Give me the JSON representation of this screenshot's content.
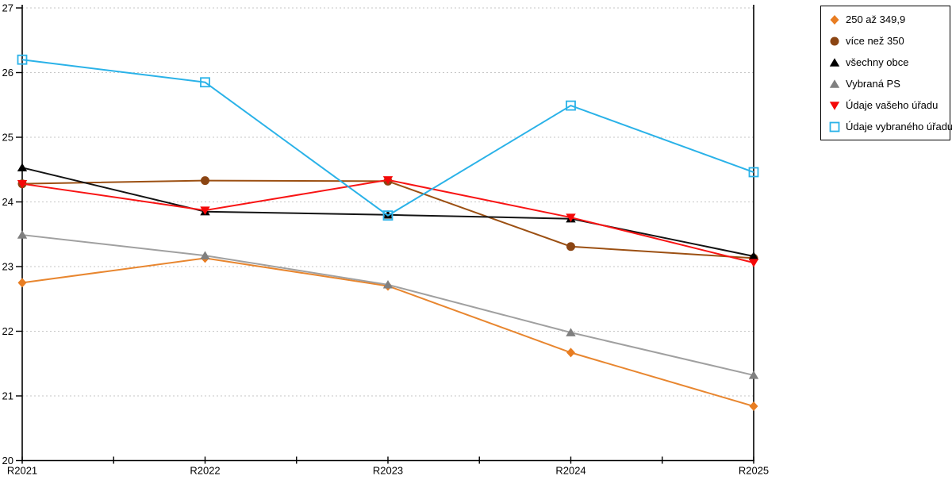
{
  "chart_data": {
    "type": "line",
    "title": "",
    "xlabel": "",
    "ylabel": "",
    "categories": [
      "R2021",
      "R2022",
      "R2023",
      "R2024",
      "R2025"
    ],
    "series": [
      {
        "name": "250 až 349,9",
        "marker": "diamond",
        "color": "#E87D22",
        "line_color": "#E8862F",
        "values": [
          22.75,
          23.13,
          22.7,
          21.67,
          20.84
        ]
      },
      {
        "name": "více než 350",
        "marker": "circle",
        "color": "#8B4513",
        "line_color": "#9C5013",
        "values": [
          24.28,
          24.33,
          24.32,
          23.31,
          23.13
        ]
      },
      {
        "name": "všechny obce",
        "marker": "triangle-up",
        "color": "#000000",
        "line_color": "#141414",
        "values": [
          24.53,
          23.85,
          23.8,
          23.74,
          23.16
        ]
      },
      {
        "name": "Vybraná PS",
        "marker": "triangle-up",
        "color": "#808080",
        "line_color": "#A0A0A0",
        "values": [
          23.49,
          23.17,
          22.72,
          21.98,
          21.32
        ]
      },
      {
        "name": "Údaje vašeho úřadu",
        "marker": "triangle-down",
        "color": "#F40808",
        "line_color": "#F81414",
        "values": [
          24.28,
          23.87,
          24.34,
          23.76,
          23.06
        ]
      },
      {
        "name": "Údaje vybraného úřadu",
        "marker": "square-open",
        "color": "#2AB2E8",
        "line_color": "#2AB2E8",
        "values": [
          26.2,
          25.85,
          23.79,
          25.49,
          24.46
        ]
      }
    ],
    "ylim": [
      20,
      27
    ],
    "yticks": [
      20,
      21,
      22,
      23,
      24,
      25,
      26,
      27
    ],
    "grid": "horizontal-dotted",
    "grid_color": "#C6C6C6",
    "axis_color": "#000000",
    "legend_position": "top-right",
    "x_minor_ticks": true
  }
}
